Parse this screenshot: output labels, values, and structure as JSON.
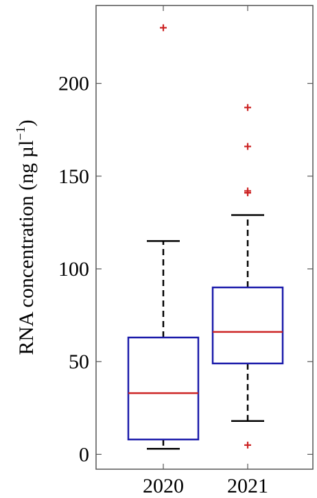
{
  "chart_data": {
    "type": "box",
    "ylabel": "RNA concentration (ng µl",
    "ylabel_sup": "−1",
    "ylabel_close": ")",
    "ylim": [
      -8,
      242
    ],
    "yticks": [
      0,
      50,
      100,
      150,
      200
    ],
    "yticklabels": [
      "0",
      "50",
      "100",
      "150",
      "200"
    ],
    "categories": [
      "2020",
      "2021"
    ],
    "boxes": [
      {
        "category": "2020",
        "whisker_low": 3,
        "q1": 8,
        "median": 33,
        "q3": 63,
        "whisker_high": 115,
        "outliers": [
          230
        ]
      },
      {
        "category": "2021",
        "whisker_low": 18,
        "q1": 49,
        "median": 66,
        "q3": 90,
        "whisker_high": 129,
        "outliers": [
          5,
          141,
          142,
          166,
          187
        ]
      }
    ],
    "colors": {
      "box": "#1a1aaa",
      "median": "#cc2222",
      "whisker": "#000000",
      "outlier": "#cc2222",
      "frame": "#555555"
    },
    "grid": false
  }
}
